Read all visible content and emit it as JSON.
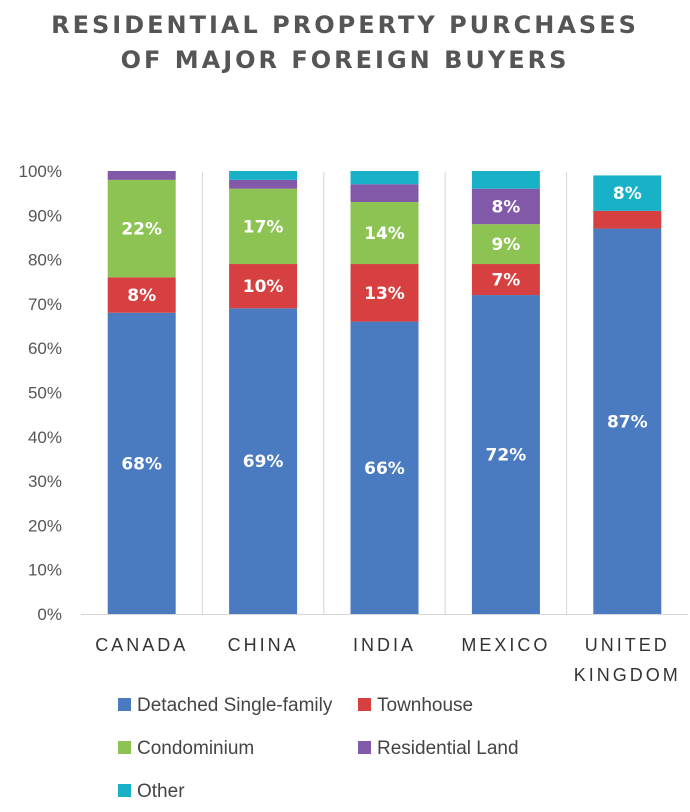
{
  "chart_data": {
    "type": "bar",
    "stacked": true,
    "title_lines": [
      "RESIDENTIAL PROPERTY PURCHASES",
      "OF MAJOR FOREIGN BUYERS"
    ],
    "categories": [
      "CANADA",
      "CHINA",
      "INDIA",
      "MEXICO",
      "UNITED KINGDOM"
    ],
    "category_label_lines": [
      [
        "CANADA"
      ],
      [
        "CHINA"
      ],
      [
        "INDIA"
      ],
      [
        "MEXICO"
      ],
      [
        "UNITED",
        "KINGDOM"
      ]
    ],
    "y_ticks": [
      "0%",
      "10%",
      "20%",
      "30%",
      "40%",
      "50%",
      "60%",
      "70%",
      "80%",
      "90%",
      "100%"
    ],
    "ylim": [
      0,
      100
    ],
    "grid": false,
    "legend_position": "bottom-left",
    "series": [
      {
        "name": "Detached Single-family",
        "color": "#4a7abf",
        "values": [
          68,
          69,
          66,
          72,
          87
        ],
        "labels": [
          "68%",
          "69%",
          "66%",
          "72%",
          "87%"
        ]
      },
      {
        "name": "Townhouse",
        "color": "#d64040",
        "values": [
          8,
          10,
          13,
          7,
          4
        ],
        "labels": [
          "8%",
          "10%",
          "13%",
          "7%",
          ""
        ]
      },
      {
        "name": "Condominium",
        "color": "#8dc352",
        "values": [
          22,
          17,
          14,
          9,
          0
        ],
        "labels": [
          "22%",
          "17%",
          "14%",
          "9%",
          ""
        ]
      },
      {
        "name": "Residential Land",
        "color": "#8258a8",
        "values": [
          2,
          2,
          4,
          8,
          0
        ],
        "labels": [
          "",
          "",
          "",
          "8%",
          ""
        ]
      },
      {
        "name": "Other",
        "color": "#19b1c8",
        "values": [
          0,
          2,
          3,
          4,
          8
        ],
        "labels": [
          "",
          "",
          "",
          "",
          "8%"
        ]
      }
    ]
  }
}
